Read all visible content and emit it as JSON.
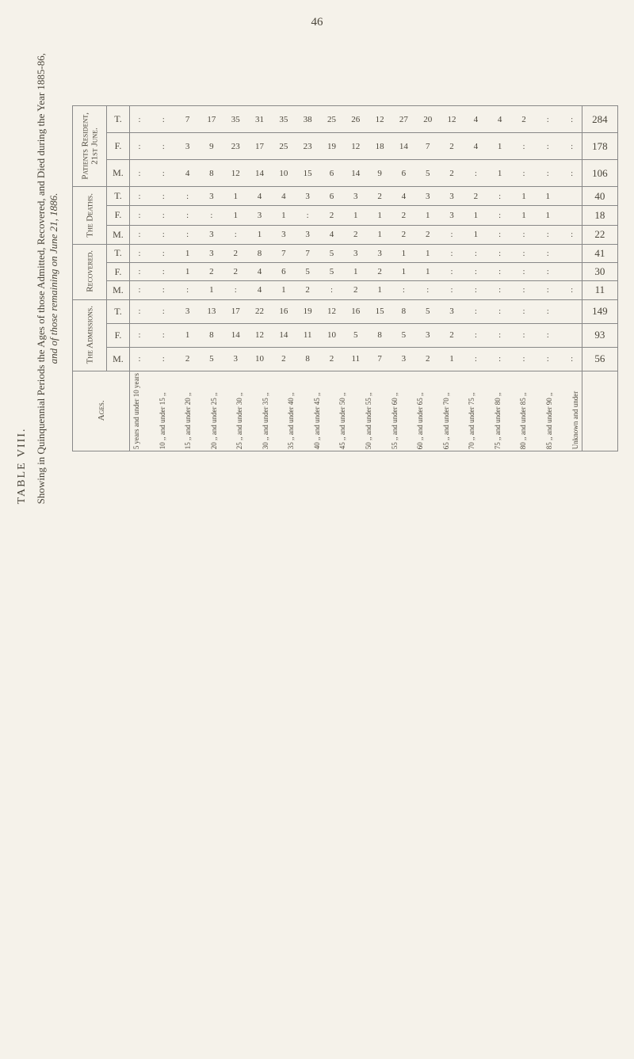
{
  "page_number": "46",
  "table_number": "TABLE VIII.",
  "main_caption": "Showing in Quinquennial Periods the Ages of those Admitted, Recovered, and Died during the Year 1885-86,",
  "sub_caption": "and of those remaining on June 21, 1886.",
  "sections": [
    {
      "label": "Patients Resident,\n21st June.",
      "rows": [
        "T.",
        "F.",
        "M."
      ]
    },
    {
      "label": "The Deaths.",
      "rows": [
        "T.",
        "F.",
        "M."
      ]
    },
    {
      "label": "Recovered.",
      "rows": [
        "T.",
        "F.",
        "M."
      ]
    },
    {
      "label": "The Admissions.",
      "rows": [
        "T.",
        "F.",
        "M."
      ]
    }
  ],
  "ages_label": "Ages.",
  "age_ranges": [
    "5 years",
    "10 ,,",
    "15 ,,",
    "20 ,,",
    "25 ,,",
    "30 ,,",
    "35 ,,",
    "40 ,,",
    "45 ,,",
    "50 ,,",
    "55 ,,",
    "60 ,,",
    "65 ,,",
    "70 ,,",
    "75 ,,",
    "80 ,,",
    "85 ,,",
    "Unknown"
  ],
  "age_ranges_upper": [
    "10 years",
    "15 ,,",
    "20 ,,",
    "25 ,,",
    "30 ,,",
    "35 ,,",
    "40 ,,",
    "45 ,,",
    "50 ,,",
    "55 ,,",
    "60 ,,",
    "65 ,,",
    "70 ,,",
    "75 ,,",
    "80 ,,",
    "85 ,,",
    "90 ,,",
    ""
  ],
  "age_middle": "and under",
  "data": {
    "resident_t": [
      ".",
      ".",
      "7",
      "17",
      "35",
      "31",
      "35",
      "38",
      "25",
      "26",
      "12",
      "27",
      "20",
      "12",
      "4",
      "4",
      "2",
      ".",
      ".",
      "284"
    ],
    "resident_f": [
      ".",
      ".",
      "3",
      "9",
      "23",
      "17",
      "25",
      "23",
      "19",
      "12",
      "18",
      "14",
      "7",
      "2",
      "4",
      "1",
      ".",
      ".",
      ".",
      "178"
    ],
    "resident_m": [
      ".",
      ".",
      "4",
      "8",
      "12",
      "14",
      "10",
      "15",
      "6",
      "14",
      "9",
      "6",
      "5",
      "2",
      ".",
      "1",
      ".",
      ".",
      ".",
      "106"
    ],
    "deaths_t": [
      ".",
      ".",
      ".",
      "3",
      "1",
      "4",
      "4",
      "3",
      "6",
      "3",
      "2",
      "4",
      "3",
      "3",
      "2",
      ".",
      "1",
      "1",
      "",
      "40"
    ],
    "deaths_f": [
      ".",
      ".",
      ".",
      ".",
      "1",
      "3",
      "1",
      ".",
      "2",
      "1",
      "1",
      "2",
      "1",
      "3",
      "1",
      ".",
      "1",
      "1",
      "",
      "18"
    ],
    "deaths_m": [
      ".",
      ".",
      ".",
      "3",
      ".",
      "1",
      "3",
      "3",
      "4",
      "2",
      "1",
      "2",
      "2",
      ".",
      "1",
      ".",
      ".",
      ".",
      ".",
      "22"
    ],
    "recovered_t": [
      ".",
      ".",
      "1",
      "3",
      "2",
      "8",
      "7",
      "7",
      "5",
      "3",
      "3",
      "1",
      "1",
      ".",
      ".",
      ".",
      ".",
      ".",
      "",
      "41"
    ],
    "recovered_f": [
      ".",
      ".",
      "1",
      "2",
      "2",
      "4",
      "6",
      "5",
      "5",
      "1",
      "2",
      "1",
      "1",
      ".",
      ".",
      ".",
      ".",
      ".",
      "",
      "30"
    ],
    "recovered_m": [
      ".",
      ".",
      ".",
      "1",
      ".",
      "4",
      "1",
      "2",
      ".",
      "2",
      "1",
      ".",
      ".",
      ".",
      ".",
      ".",
      ".",
      ".",
      ".",
      "11"
    ],
    "admissions_t": [
      ".",
      ".",
      "3",
      "13",
      "17",
      "22",
      "16",
      "19",
      "12",
      "16",
      "15",
      "8",
      "5",
      "3",
      ".",
      ".",
      ".",
      ".",
      "",
      "149"
    ],
    "admissions_f": [
      ".",
      ".",
      "1",
      "8",
      "14",
      "12",
      "14",
      "11",
      "10",
      "5",
      "8",
      "5",
      "3",
      "2",
      ".",
      ".",
      ".",
      ".",
      "",
      "93"
    ],
    "admissions_m": [
      ".",
      ".",
      "2",
      "5",
      "3",
      "10",
      "2",
      "8",
      "2",
      "11",
      "7",
      "3",
      "2",
      "1",
      ".",
      ".",
      ".",
      ".",
      ".",
      "56"
    ]
  },
  "colors": {
    "background": "#f5f2ea",
    "text": "#4a453a",
    "border": "#888888"
  },
  "fonts": {
    "body_family": "Times New Roman, serif",
    "data_size": 11,
    "label_size": 12
  }
}
